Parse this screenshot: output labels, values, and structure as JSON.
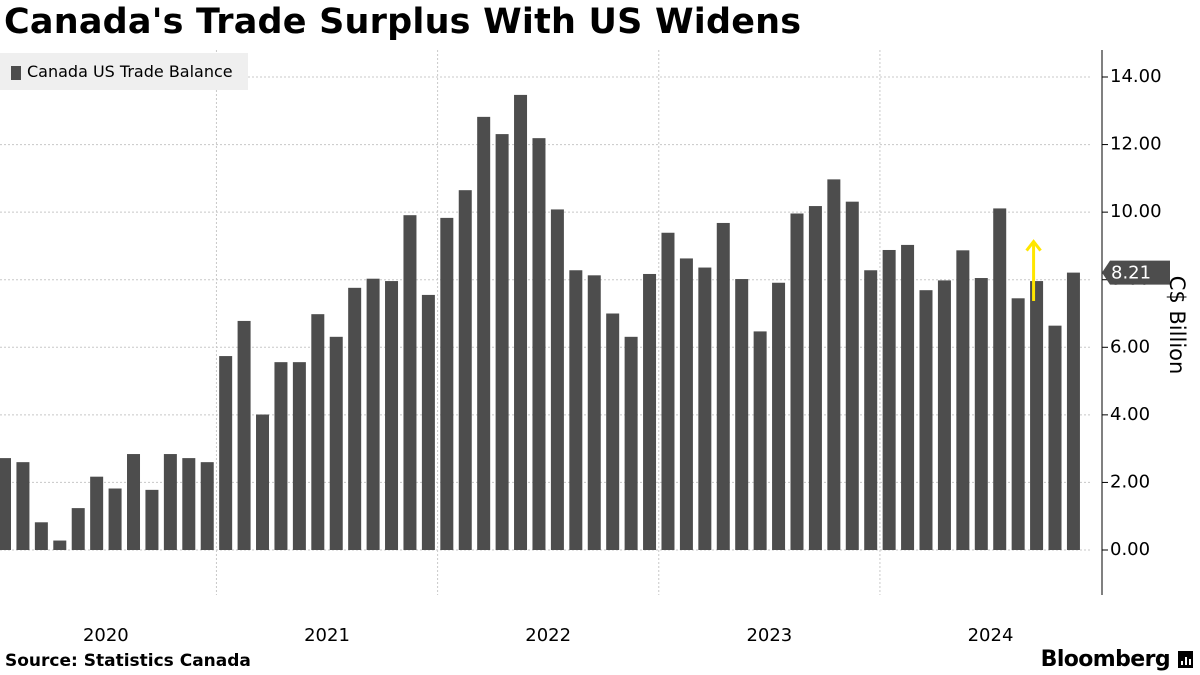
{
  "title": "Canada's Trade Surplus With US Widens",
  "legend": {
    "label": "Canada US Trade Balance"
  },
  "source": "Source: Statistics Canada",
  "brand": "Bloomberg",
  "colors": {
    "bar": "#4d4d4d",
    "grid": "#c8c8c8",
    "arrow": "#ffe600",
    "callout": "#4d4d4d",
    "callout_text": "#ffffff"
  },
  "chart_data": {
    "type": "bar",
    "title": "Canada's Trade Surplus With US Widens",
    "xlabel": "",
    "ylabel": "C$ Billion",
    "y_axis_position": "right",
    "ylim": [
      -1.3,
      14.8
    ],
    "y_ticks": [
      "0.00",
      "2.00",
      "4.00",
      "6.00",
      "8.00",
      "10.00",
      "12.00",
      "14.00"
    ],
    "x_tick_labels": [
      "2020",
      "2021",
      "2022",
      "2023",
      "2024"
    ],
    "grid": true,
    "legend_position": "top-left",
    "series": [
      {
        "name": "Canada US Trade Balance",
        "start": "2020-01",
        "frequency": "monthly",
        "values": [
          2.72,
          2.6,
          0.82,
          0.28,
          1.24,
          2.17,
          1.82,
          2.84,
          1.78,
          2.84,
          2.72,
          2.6,
          5.74,
          6.78,
          4.01,
          5.56,
          5.56,
          6.98,
          6.31,
          7.76,
          8.03,
          7.96,
          9.91,
          7.55,
          9.83,
          10.65,
          12.82,
          12.31,
          13.47,
          12.19,
          10.08,
          8.28,
          8.13,
          7.0,
          6.31,
          8.17,
          9.39,
          8.63,
          8.36,
          9.68,
          8.02,
          6.47,
          7.91,
          9.96,
          10.18,
          10.97,
          10.31,
          8.28,
          8.88,
          9.03,
          7.69,
          7.98,
          8.87,
          8.05,
          10.11,
          7.45,
          7.96,
          6.64,
          8.21
        ]
      }
    ],
    "annotations": [
      {
        "type": "last-value-callout",
        "text": "8.21"
      },
      {
        "type": "arrow",
        "direction": "up",
        "color": "yellow"
      }
    ]
  }
}
